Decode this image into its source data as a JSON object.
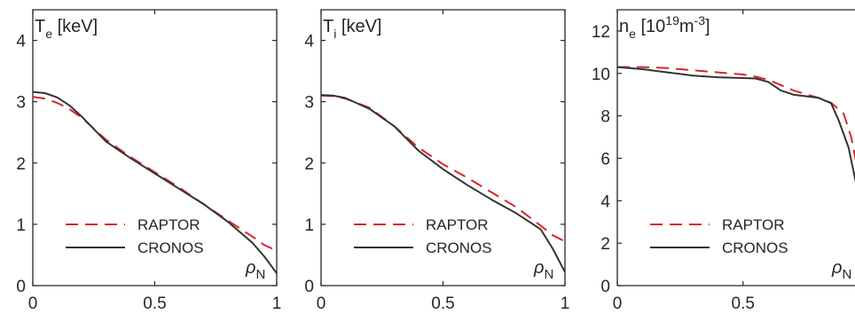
{
  "figure": {
    "colors": {
      "raptor": "#d7262b",
      "cronos": "#333333",
      "axes": "#262626"
    }
  },
  "chart_data": [
    {
      "type": "line",
      "panel_label": {
        "symbol": "T",
        "subscript": "e",
        "unit": " [keV]"
      },
      "x_symbol": {
        "symbol": "ρ",
        "subscript": "N"
      },
      "xlim": [
        0,
        1
      ],
      "ylim": [
        0,
        4.5
      ],
      "xticks": [
        0,
        0.5,
        1
      ],
      "xtick_labels": [
        "0",
        "0.5",
        "1"
      ],
      "yticks": [
        0,
        1,
        2,
        3,
        4
      ],
      "ytick_labels": [
        "0",
        "1",
        "2",
        "3",
        "4"
      ],
      "legend": {
        "placement": "lower-center",
        "entries": [
          "RAPTOR",
          "CRONOS"
        ]
      },
      "series": [
        {
          "name": "RAPTOR",
          "style": "dashed",
          "color": "#d7262b",
          "x": [
            0,
            0.05,
            0.1,
            0.15,
            0.2,
            0.3,
            0.4,
            0.5,
            0.6,
            0.7,
            0.8,
            0.9,
            0.95,
            1.0
          ],
          "y": [
            3.08,
            3.05,
            2.98,
            2.88,
            2.74,
            2.38,
            2.1,
            1.85,
            1.6,
            1.33,
            1.06,
            0.8,
            0.66,
            0.57
          ]
        },
        {
          "name": "CRONOS",
          "style": "solid",
          "color": "#333333",
          "x": [
            0,
            0.05,
            0.1,
            0.15,
            0.2,
            0.3,
            0.4,
            0.5,
            0.6,
            0.7,
            0.8,
            0.9,
            0.95,
            1.0
          ],
          "y": [
            3.16,
            3.14,
            3.07,
            2.94,
            2.76,
            2.35,
            2.08,
            1.83,
            1.58,
            1.33,
            1.04,
            0.7,
            0.47,
            0.2
          ]
        }
      ]
    },
    {
      "type": "line",
      "panel_label": {
        "symbol": "T",
        "subscript": "i",
        "unit": " [keV]"
      },
      "x_symbol": {
        "symbol": "ρ",
        "subscript": "N"
      },
      "xlim": [
        0,
        1
      ],
      "ylim": [
        0,
        4.5
      ],
      "xticks": [
        0,
        0.5,
        1
      ],
      "xtick_labels": [
        "0",
        "0.5",
        "1"
      ],
      "yticks": [
        0,
        1,
        2,
        3,
        4
      ],
      "ytick_labels": [
        "0",
        "1",
        "2",
        "3",
        "4"
      ],
      "legend": {
        "placement": "lower-center",
        "entries": [
          "RAPTOR",
          "CRONOS"
        ]
      },
      "series": [
        {
          "name": "RAPTOR",
          "style": "dashed",
          "color": "#d7262b",
          "x": [
            0,
            0.05,
            0.1,
            0.2,
            0.3,
            0.4,
            0.5,
            0.6,
            0.7,
            0.8,
            0.9,
            0.95,
            1.0
          ],
          "y": [
            3.1,
            3.09,
            3.05,
            2.9,
            2.6,
            2.25,
            1.98,
            1.76,
            1.52,
            1.28,
            0.98,
            0.82,
            0.72
          ]
        },
        {
          "name": "CRONOS",
          "style": "solid",
          "color": "#333333",
          "x": [
            0,
            0.05,
            0.1,
            0.2,
            0.3,
            0.4,
            0.5,
            0.6,
            0.7,
            0.8,
            0.9,
            0.95,
            1.0
          ],
          "y": [
            3.11,
            3.1,
            3.06,
            2.88,
            2.6,
            2.2,
            1.9,
            1.64,
            1.4,
            1.18,
            0.92,
            0.6,
            0.22
          ]
        }
      ]
    },
    {
      "type": "line",
      "panel_label": {
        "symbol": "n",
        "subscript": "e",
        "unit": " [10",
        "exponent": "19",
        "unit_mid": "m",
        "exponent2": "-3",
        "unit_end": "]"
      },
      "x_symbol": {
        "symbol": "ρ",
        "subscript": "N"
      },
      "xlim": [
        0,
        0.97
      ],
      "ylim": [
        0,
        13
      ],
      "xticks": [
        0,
        0.5
      ],
      "xtick_labels": [
        "0",
        "0.5"
      ],
      "yticks": [
        0,
        2,
        4,
        6,
        8,
        10,
        12
      ],
      "ytick_labels": [
        "0",
        "2",
        "4",
        "6",
        "8",
        "10",
        "12"
      ],
      "legend": {
        "placement": "lower-center",
        "entries": [
          "RAPTOR",
          "CRONOS"
        ]
      },
      "series": [
        {
          "name": "RAPTOR",
          "style": "dashed",
          "color": "#d7262b",
          "x": [
            0,
            0.1,
            0.2,
            0.3,
            0.4,
            0.5,
            0.55,
            0.6,
            0.7,
            0.8,
            0.85,
            0.9,
            0.93,
            0.96,
            1.0
          ],
          "y": [
            10.3,
            10.3,
            10.25,
            10.15,
            10.05,
            9.95,
            9.85,
            9.7,
            9.2,
            8.85,
            8.62,
            8.1,
            7.0,
            5.2,
            4.0
          ]
        },
        {
          "name": "CRONOS",
          "style": "solid",
          "color": "#333333",
          "x": [
            0,
            0.1,
            0.2,
            0.3,
            0.4,
            0.5,
            0.55,
            0.6,
            0.65,
            0.7,
            0.8,
            0.85,
            0.88,
            0.92,
            0.96,
            1.0
          ],
          "y": [
            10.3,
            10.2,
            10.05,
            9.9,
            9.82,
            9.78,
            9.76,
            9.6,
            9.2,
            9.0,
            8.85,
            8.6,
            7.8,
            6.5,
            4.2,
            3.0
          ]
        }
      ]
    }
  ]
}
